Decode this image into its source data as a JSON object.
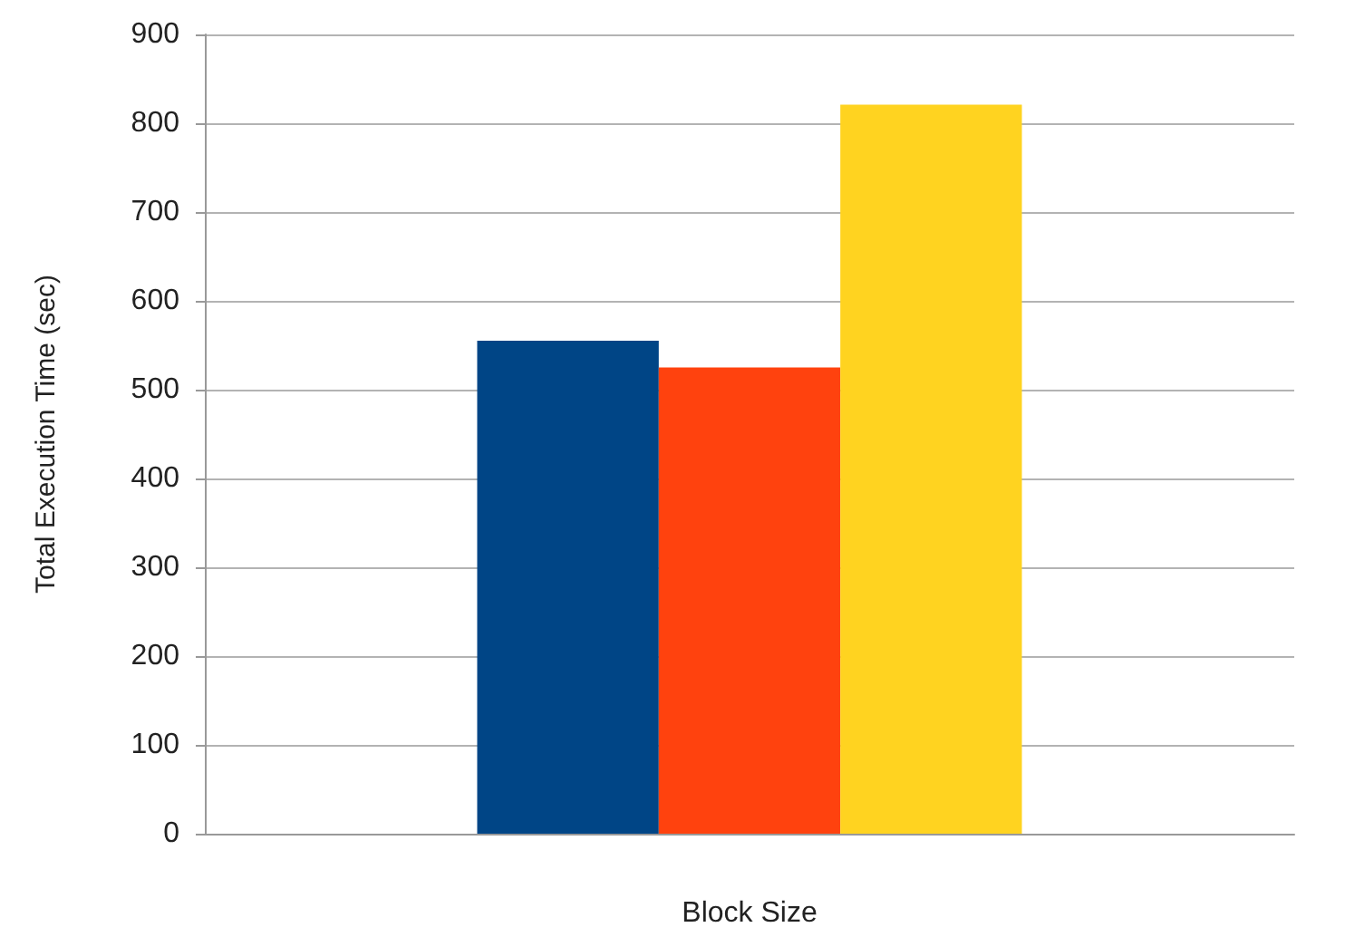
{
  "chart_data": {
    "type": "bar",
    "xlabel": "Block Size",
    "ylabel": "Total Execution Time (sec)",
    "categories": [
      null
    ],
    "series": [
      {
        "color": "#004586",
        "values": [
          555
        ]
      },
      {
        "color": "#ff420e",
        "values": [
          525
        ]
      },
      {
        "color": "#ffd320",
        "values": [
          821
        ]
      }
    ],
    "ylim": [
      0,
      900
    ],
    "yticks": [
      0,
      100,
      200,
      300,
      400,
      500,
      600,
      700,
      800,
      900
    ],
    "grid": "y"
  }
}
